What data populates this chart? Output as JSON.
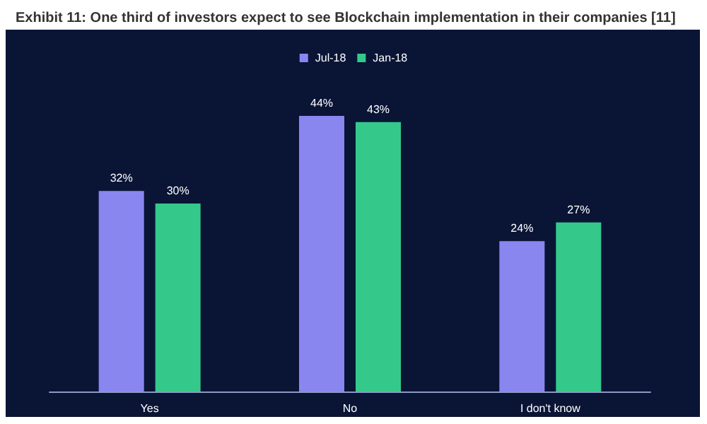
{
  "chart_data": {
    "type": "bar",
    "title": "Exhibit 11: One third of investors expect to see Blockchain implementation in their companies [11]",
    "categories": [
      "Yes",
      "No",
      "I don't know"
    ],
    "series": [
      {
        "name": "Jul-18",
        "color": "#8a86f0",
        "values": [
          32,
          44,
          24
        ],
        "value_labels": [
          "32%",
          "44%",
          "24%"
        ]
      },
      {
        "name": "Jan-18",
        "color": "#34c98a",
        "values": [
          30,
          43,
          27
        ],
        "value_labels": [
          "30%",
          "43%",
          "27%"
        ]
      }
    ],
    "legend": "top"
  }
}
